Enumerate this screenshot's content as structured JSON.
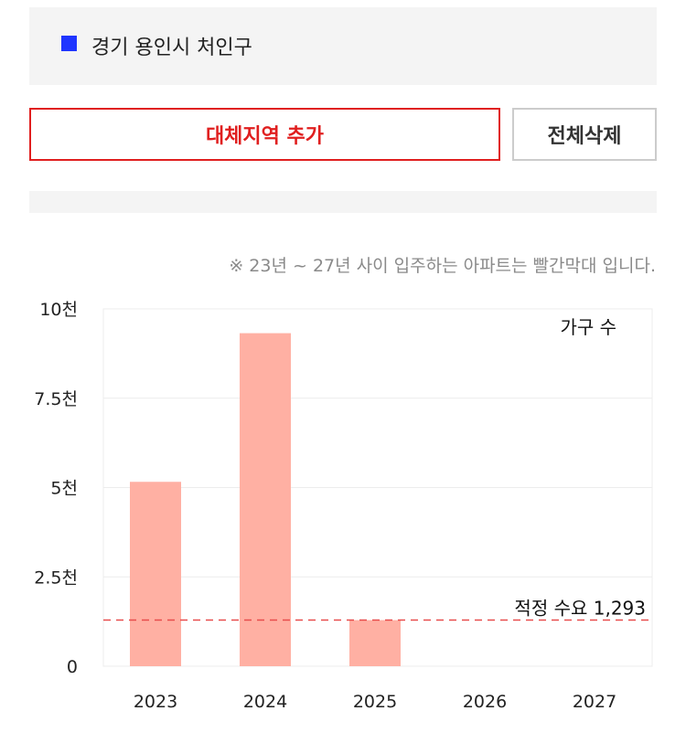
{
  "region": {
    "name": "경기 용인시 처인구",
    "marker_color": "#1f35ff"
  },
  "buttons": {
    "add_label": "대체지역 추가",
    "clear_label": "전체삭제"
  },
  "note": "※ 23년 ~ 27년 사이 입주하는 아파트는 빨간막대 입니다.",
  "chart_data": {
    "type": "bar",
    "categories": [
      "2023",
      "2024",
      "2025",
      "2026",
      "2027"
    ],
    "series": [
      {
        "name": "가구 수",
        "values": [
          5160,
          9320,
          1290,
          0,
          0
        ],
        "color": "#ffb0a3"
      }
    ],
    "yticks": [
      {
        "value": 0,
        "label": "0"
      },
      {
        "value": 2500,
        "label": "2.5천"
      },
      {
        "value": 5000,
        "label": "5천"
      },
      {
        "value": 7500,
        "label": "7.5천"
      },
      {
        "value": 10000,
        "label": "10천"
      }
    ],
    "ylim": [
      0,
      10000
    ],
    "reference_line": {
      "value": 1293,
      "label": "적정 수요 1,293",
      "color": "#e84c4c"
    },
    "legend_label": "가구 수",
    "legend_position": "top-right",
    "grid": true
  }
}
